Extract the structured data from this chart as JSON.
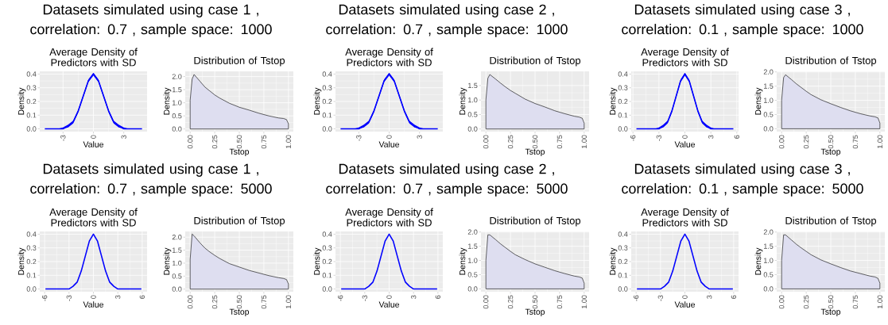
{
  "chart_data": [
    {
      "type": "line",
      "title": "Datasets simulated using case 1 , correlation: 0.7 , sample space: 1000",
      "subtitle": "Average Density of Predictors with SD",
      "xlabel": "Value",
      "ylabel": "Density",
      "grid": true,
      "x": [
        -4.8,
        -4,
        -3.5,
        -3,
        -2.5,
        -2,
        -1.5,
        -1,
        -0.5,
        0,
        0.5,
        1,
        1.5,
        2,
        2.5,
        3,
        3.5,
        4,
        4.8
      ],
      "series": [
        {
          "color": "#0000ff",
          "values": [
            0,
            0,
            0,
            0,
            0.02,
            0.05,
            0.13,
            0.24,
            0.35,
            0.4,
            0.35,
            0.24,
            0.13,
            0.05,
            0.02,
            0,
            0,
            0,
            0
          ],
          "lower": [
            0,
            0,
            0,
            0,
            0.01,
            0.04,
            0.12,
            0.23,
            0.34,
            0.39,
            0.34,
            0.23,
            0.12,
            0.04,
            0.01,
            0,
            0,
            0,
            0
          ],
          "upper": [
            0,
            0,
            0,
            0.01,
            0.03,
            0.06,
            0.14,
            0.25,
            0.36,
            0.41,
            0.36,
            0.25,
            0.14,
            0.06,
            0.03,
            0.01,
            0,
            0,
            0
          ]
        }
      ],
      "xlim": [
        -5.3,
        5.3
      ],
      "xticks": [
        -3,
        0,
        3
      ],
      "ylim": [
        -0.02,
        0.42
      ],
      "yticks": [
        {
          "value": 0,
          "label": "0.0"
        },
        0.1,
        0.2,
        0.3,
        0.4
      ]
    },
    {
      "type": "area",
      "title": "Distribution of Tstop",
      "xlabel": "Tstop",
      "ylabel": "Density",
      "grid": true,
      "x": [
        0,
        0.02,
        0.04,
        0.1,
        0.15,
        0.2,
        0.25,
        0.3,
        0.4,
        0.5,
        0.6,
        0.7,
        0.8,
        0.9,
        0.95,
        0.98,
        1
      ],
      "series": [
        {
          "color": "#dedef0",
          "values": [
            1.1,
            1.9,
            2.08,
            1.82,
            1.6,
            1.45,
            1.3,
            1.18,
            0.98,
            0.83,
            0.72,
            0.6,
            0.5,
            0.42,
            0.4,
            0.36,
            0.2
          ]
        }
      ],
      "xlim": [
        -0.05,
        1.05
      ],
      "xticks": [
        {
          "value": 0,
          "label": "0.00"
        },
        0.25,
        {
          "value": 0.5,
          "label": "0.50"
        },
        0.75,
        {
          "value": 1,
          "label": "1.00"
        }
      ],
      "ylim": [
        -0.1,
        2.2
      ],
      "yticks": [
        {
          "value": 0,
          "label": "0.0"
        },
        0.5,
        {
          "value": 1,
          "label": "1.0"
        },
        1.5,
        {
          "value": 2,
          "label": "2.0"
        }
      ]
    },
    {
      "type": "line",
      "title": "Datasets simulated using case 2 , correlation: 0.7 , sample space: 1000",
      "subtitle": "Average Density of Predictors with SD",
      "xlabel": "Value",
      "ylabel": "Density",
      "grid": true,
      "x": [
        -4.8,
        -4,
        -3.5,
        -3,
        -2.5,
        -2,
        -1.5,
        -1,
        -0.5,
        0,
        0.5,
        1,
        1.5,
        2,
        2.5,
        3,
        3.5,
        4,
        4.8
      ],
      "series": [
        {
          "color": "#0000ff",
          "values": [
            0,
            0,
            0,
            0,
            0.02,
            0.05,
            0.13,
            0.24,
            0.35,
            0.4,
            0.35,
            0.24,
            0.13,
            0.05,
            0.02,
            0,
            0,
            0,
            0
          ],
          "lower": [
            0,
            0,
            0,
            0,
            0.01,
            0.04,
            0.12,
            0.23,
            0.34,
            0.39,
            0.34,
            0.23,
            0.12,
            0.04,
            0.01,
            0,
            0,
            0,
            0
          ],
          "upper": [
            0,
            0,
            0,
            0.01,
            0.03,
            0.06,
            0.14,
            0.25,
            0.36,
            0.41,
            0.36,
            0.25,
            0.14,
            0.06,
            0.03,
            0.01,
            0,
            0,
            0
          ]
        }
      ],
      "xlim": [
        -5.3,
        5.3
      ],
      "xticks": [
        -3,
        0,
        3
      ],
      "ylim": [
        -0.02,
        0.42
      ],
      "yticks": [
        {
          "value": 0,
          "label": "0.0"
        },
        0.1,
        0.2,
        0.3,
        0.4
      ]
    },
    {
      "type": "area",
      "title": "Distribution of Tstop",
      "xlabel": "Tstop",
      "ylabel": "Density",
      "grid": true,
      "x": [
        0,
        0.02,
        0.04,
        0.1,
        0.15,
        0.2,
        0.25,
        0.3,
        0.4,
        0.5,
        0.6,
        0.7,
        0.8,
        0.9,
        0.95,
        0.98,
        1
      ],
      "series": [
        {
          "color": "#dedef0",
          "values": [
            1.0,
            1.75,
            1.88,
            1.72,
            1.58,
            1.45,
            1.33,
            1.23,
            1.03,
            0.88,
            0.76,
            0.63,
            0.53,
            0.44,
            0.41,
            0.37,
            0.2
          ]
        }
      ],
      "xlim": [
        -0.05,
        1.05
      ],
      "xticks": [
        {
          "value": 0,
          "label": "0.00"
        },
        0.25,
        {
          "value": 0.5,
          "label": "0.50"
        },
        0.75,
        {
          "value": 1,
          "label": "1.00"
        }
      ],
      "ylim": [
        -0.09,
        1.99
      ],
      "yticks": [
        {
          "value": 0,
          "label": "0.0"
        },
        0.5,
        {
          "value": 1,
          "label": "1.0"
        },
        1.5
      ]
    },
    {
      "type": "line",
      "title": "Datasets simulated using case 3 , correlation: 0.1 , sample space: 1000",
      "subtitle": "Average Density of Predictors with SD",
      "xlabel": "Value",
      "ylabel": "Density",
      "grid": true,
      "x": [
        -5.6,
        -4,
        -3.5,
        -3,
        -2.5,
        -2,
        -1.5,
        -1,
        -0.5,
        0,
        0.5,
        1,
        1.5,
        2,
        2.5,
        3,
        3.5,
        4,
        5.6
      ],
      "series": [
        {
          "color": "#0000ff",
          "values": [
            0,
            0,
            0,
            0,
            0.02,
            0.05,
            0.13,
            0.24,
            0.35,
            0.4,
            0.35,
            0.24,
            0.13,
            0.05,
            0.02,
            0,
            0,
            0,
            0
          ],
          "lower": [
            0,
            0,
            0,
            0,
            0.01,
            0.04,
            0.12,
            0.23,
            0.34,
            0.39,
            0.34,
            0.23,
            0.12,
            0.04,
            0.01,
            0,
            0,
            0,
            0
          ],
          "upper": [
            0,
            0,
            0,
            0.01,
            0.03,
            0.06,
            0.14,
            0.25,
            0.36,
            0.41,
            0.36,
            0.25,
            0.14,
            0.06,
            0.03,
            0.01,
            0,
            0,
            0
          ]
        }
      ],
      "xlim": [
        -6.2,
        6.2
      ],
      "xticks": [
        -6,
        -3,
        0,
        3,
        6
      ],
      "ylim": [
        -0.02,
        0.42
      ],
      "yticks": [
        {
          "value": 0,
          "label": "0.0"
        },
        0.1,
        0.2,
        0.3,
        0.4
      ]
    },
    {
      "type": "area",
      "title": "Distribution of Tstop",
      "xlabel": "Tstop",
      "ylabel": "Density",
      "grid": true,
      "x": [
        0,
        0.02,
        0.04,
        0.1,
        0.15,
        0.2,
        0.25,
        0.3,
        0.4,
        0.5,
        0.6,
        0.7,
        0.8,
        0.9,
        0.95,
        0.98,
        1
      ],
      "series": [
        {
          "color": "#dedef0",
          "values": [
            1.0,
            1.8,
            1.9,
            1.73,
            1.58,
            1.45,
            1.32,
            1.2,
            1.02,
            0.88,
            0.75,
            0.63,
            0.53,
            0.45,
            0.42,
            0.38,
            0.2
          ]
        }
      ],
      "xlim": [
        -0.05,
        1.05
      ],
      "xticks": [
        {
          "value": 0,
          "label": "0.00"
        },
        0.25,
        {
          "value": 0.5,
          "label": "0.50"
        },
        0.75,
        {
          "value": 1,
          "label": "1.00"
        }
      ],
      "ylim": [
        -0.1,
        2.02
      ],
      "yticks": [
        {
          "value": 0,
          "label": "0.0"
        },
        0.5,
        {
          "value": 1,
          "label": "1.0"
        },
        1.5,
        {
          "value": 2,
          "label": "2.0"
        }
      ]
    },
    {
      "type": "line",
      "title": "Datasets simulated using case 1 , correlation: 0.7 , sample space: 5000",
      "subtitle": "Average Density of Predictors with SD",
      "xlabel": "Value",
      "ylabel": "Density",
      "grid": true,
      "x": [
        -5.9,
        -4,
        -3.5,
        -3,
        -2.5,
        -2,
        -1.5,
        -1,
        -0.5,
        0,
        0.5,
        1,
        1.5,
        2,
        2.5,
        3,
        3.5,
        4,
        5.9
      ],
      "series": [
        {
          "color": "#0000ff",
          "values": [
            0,
            0,
            0,
            0,
            0.02,
            0.05,
            0.13,
            0.24,
            0.35,
            0.4,
            0.35,
            0.24,
            0.13,
            0.05,
            0.02,
            0,
            0,
            0,
            0
          ]
        }
      ],
      "xlim": [
        -6.6,
        6.6
      ],
      "xticks": [
        -6,
        -3,
        0,
        3,
        6
      ],
      "ylim": [
        -0.02,
        0.42
      ],
      "yticks": [
        {
          "value": 0,
          "label": "0.0"
        },
        0.1,
        0.2,
        0.3,
        0.4
      ]
    },
    {
      "type": "area",
      "title": "Distribution of Tstop",
      "xlabel": "Tstop",
      "ylabel": "Density",
      "grid": true,
      "x": [
        0,
        0.02,
        0.04,
        0.1,
        0.15,
        0.2,
        0.25,
        0.3,
        0.4,
        0.5,
        0.6,
        0.7,
        0.8,
        0.9,
        0.95,
        0.98,
        1
      ],
      "series": [
        {
          "color": "#dedef0",
          "values": [
            1.15,
            2.12,
            2.05,
            1.78,
            1.58,
            1.43,
            1.3,
            1.18,
            0.98,
            0.85,
            0.72,
            0.62,
            0.52,
            0.44,
            0.41,
            0.37,
            0.2
          ]
        }
      ],
      "xlim": [
        -0.05,
        1.05
      ],
      "xticks": [
        {
          "value": 0,
          "label": "0.00"
        },
        0.25,
        {
          "value": 0.5,
          "label": "0.50"
        },
        0.75,
        {
          "value": 1,
          "label": "1.00"
        }
      ],
      "ylim": [
        -0.1,
        2.22
      ],
      "yticks": [
        {
          "value": 0,
          "label": "0.0"
        },
        0.5,
        {
          "value": 1,
          "label": "1.0"
        },
        1.5,
        {
          "value": 2,
          "label": "2.0"
        }
      ]
    },
    {
      "type": "line",
      "title": "Datasets simulated using case 2 , correlation: 0.7 , sample space: 5000",
      "subtitle": "Average Density of Predictors with SD",
      "xlabel": "Value",
      "ylabel": "Density",
      "grid": true,
      "x": [
        -5.9,
        -4,
        -3.5,
        -3,
        -2.5,
        -2,
        -1.5,
        -1,
        -0.5,
        0,
        0.5,
        1,
        1.5,
        2,
        2.5,
        3,
        3.5,
        4,
        5.9
      ],
      "series": [
        {
          "color": "#0000ff",
          "values": [
            0,
            0,
            0,
            0,
            0.02,
            0.05,
            0.13,
            0.24,
            0.35,
            0.4,
            0.35,
            0.24,
            0.13,
            0.05,
            0.02,
            0,
            0,
            0,
            0
          ]
        }
      ],
      "xlim": [
        -6.6,
        6.6
      ],
      "xticks": [
        -6,
        -3,
        0,
        3,
        6
      ],
      "ylim": [
        -0.02,
        0.42
      ],
      "yticks": [
        {
          "value": 0,
          "label": "0.0"
        },
        0.1,
        0.2,
        0.3,
        0.4
      ]
    },
    {
      "type": "area",
      "title": "Distribution of Tstop",
      "xlabel": "Tstop",
      "ylabel": "Density",
      "grid": true,
      "x": [
        0,
        0.02,
        0.04,
        0.1,
        0.15,
        0.2,
        0.25,
        0.3,
        0.4,
        0.5,
        0.6,
        0.7,
        0.8,
        0.9,
        0.95,
        0.98,
        1
      ],
      "series": [
        {
          "color": "#dedef0",
          "values": [
            1.0,
            1.9,
            1.9,
            1.73,
            1.58,
            1.45,
            1.32,
            1.2,
            1.03,
            0.88,
            0.76,
            0.64,
            0.54,
            0.45,
            0.42,
            0.38,
            0.2
          ]
        }
      ],
      "xlim": [
        -0.05,
        1.05
      ],
      "xticks": [
        {
          "value": 0,
          "label": "0.00"
        },
        0.25,
        {
          "value": 0.5,
          "label": "0.50"
        },
        0.75,
        {
          "value": 1,
          "label": "1.00"
        }
      ],
      "ylim": [
        -0.1,
        2.02
      ],
      "yticks": [
        {
          "value": 0,
          "label": "0.0"
        },
        0.5,
        {
          "value": 1,
          "label": "1.0"
        },
        1.5,
        {
          "value": 2,
          "label": "2.0"
        }
      ]
    },
    {
      "type": "line",
      "title": "Datasets simulated using case 3 , correlation: 0.1 , sample space: 5000",
      "subtitle": "Average Density of Predictors with SD",
      "xlabel": "Value",
      "ylabel": "Density",
      "grid": true,
      "x": [
        -5.9,
        -4,
        -3.5,
        -3,
        -2.5,
        -2,
        -1.5,
        -1,
        -0.5,
        0,
        0.5,
        1,
        1.5,
        2,
        2.5,
        3,
        3.5,
        4,
        5.9
      ],
      "series": [
        {
          "color": "#0000ff",
          "values": [
            0,
            0,
            0,
            0,
            0.02,
            0.05,
            0.13,
            0.24,
            0.35,
            0.4,
            0.35,
            0.24,
            0.13,
            0.05,
            0.02,
            0,
            0,
            0,
            0
          ]
        }
      ],
      "xlim": [
        -6.6,
        6.6
      ],
      "xticks": [
        -6,
        -3,
        0,
        3,
        6
      ],
      "ylim": [
        -0.02,
        0.42
      ],
      "yticks": [
        {
          "value": 0,
          "label": "0.0"
        },
        0.1,
        0.2,
        0.3,
        0.4
      ]
    },
    {
      "type": "area",
      "title": "Distribution of Tstop",
      "xlabel": "Tstop",
      "ylabel": "Density",
      "grid": true,
      "x": [
        0,
        0.02,
        0.04,
        0.1,
        0.15,
        0.2,
        0.25,
        0.3,
        0.4,
        0.5,
        0.6,
        0.7,
        0.8,
        0.9,
        0.95,
        0.98,
        1
      ],
      "series": [
        {
          "color": "#dedef0",
          "values": [
            1.0,
            1.9,
            1.9,
            1.72,
            1.57,
            1.44,
            1.32,
            1.2,
            1.02,
            0.88,
            0.75,
            0.63,
            0.54,
            0.45,
            0.42,
            0.37,
            0.2
          ]
        }
      ],
      "xlim": [
        -0.05,
        1.05
      ],
      "xticks": [
        {
          "value": 0,
          "label": "0.00"
        },
        0.25,
        {
          "value": 0.5,
          "label": "0.50"
        },
        0.75,
        {
          "value": 1,
          "label": "1.00"
        }
      ],
      "ylim": [
        -0.1,
        2.02
      ],
      "yticks": [
        {
          "value": 0,
          "label": "0.0"
        },
        0.5,
        {
          "value": 1,
          "label": "1.0"
        },
        1.5,
        {
          "value": 2,
          "label": "2.0"
        }
      ]
    }
  ]
}
